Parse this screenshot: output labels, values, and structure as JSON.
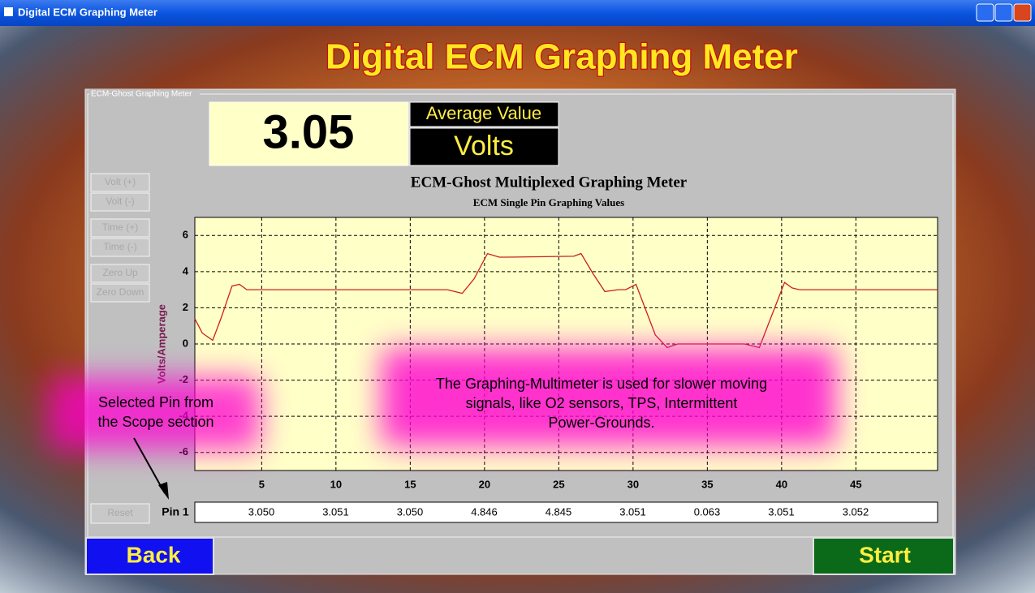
{
  "window_title": "Digital ECM Graphing Meter",
  "header": {
    "title": "Digital ECM Graphing Meter"
  },
  "panel": {
    "group_label": "ECM-Ghost Graphing Meter",
    "readout": {
      "value": "3.05",
      "caption": "Average Value",
      "units": "Volts"
    },
    "side_buttons": [
      "Volt (+)",
      "Volt (-)",
      "Time (+)",
      "Time (-)",
      "Zero Up",
      "Zero Down"
    ],
    "reset_button": "Reset",
    "pin_label": "Pin 1",
    "pin_readings": [
      "3.050",
      "3.051",
      "3.050",
      "4.846",
      "4.845",
      "3.051",
      "0.063",
      "3.051",
      "3.052"
    ]
  },
  "chart_data": {
    "type": "line",
    "title": "ECM-Ghost Multiplexed Graphing Meter",
    "subtitle": "ECM Single Pin Graphing Values",
    "y_label": "Volts/Amperage",
    "color": "#cc2020",
    "x": [
      0.5,
      1,
      1.7,
      2.3,
      3,
      3.5,
      4,
      5,
      10,
      15,
      17.5,
      18.5,
      19.3,
      20.2,
      21,
      21.5,
      26,
      26.5,
      27.3,
      28.1,
      29,
      29.5,
      30.2,
      30.8,
      31.5,
      32.3,
      33,
      35,
      37.5,
      38.5,
      39.3,
      40.2,
      40.7,
      41.2,
      45,
      50.5
    ],
    "values": [
      1.4,
      0.6,
      0.2,
      1.5,
      3.2,
      3.3,
      3.0,
      3.0,
      3.0,
      3.0,
      3.0,
      2.8,
      3.6,
      5.0,
      4.8,
      4.8,
      4.85,
      5.0,
      3.9,
      2.9,
      3.0,
      3.0,
      3.3,
      2.0,
      0.5,
      -0.2,
      0,
      0,
      0,
      -0.2,
      1.5,
      3.4,
      3.1,
      3.0,
      3.0,
      3.0
    ],
    "xlim": [
      0.5,
      50.5
    ],
    "ylim": [
      -7,
      7
    ],
    "xticks": [
      5,
      10,
      15,
      20,
      25,
      30,
      35,
      40,
      45
    ],
    "yticks": [
      6,
      4,
      2,
      0,
      -2,
      -4,
      -6
    ],
    "grid": true
  },
  "annotations": {
    "selected_pin": [
      "Selected Pin from",
      "the Scope section"
    ],
    "note": [
      "The Graphing-Multimeter is used for slower moving",
      "signals, like O2 sensors, TPS, Intermittent",
      "Power-Grounds."
    ]
  },
  "nav": {
    "back": "Back",
    "start": "Start"
  }
}
